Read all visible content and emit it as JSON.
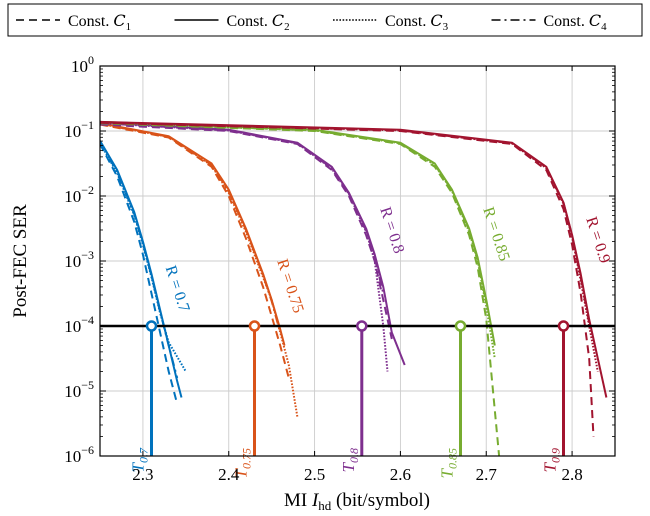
{
  "chart_data": {
    "type": "line",
    "title": "",
    "xlabel": "MI",
    "xlabel_symbol": "I",
    "xlabel_subscript": "hd",
    "xlabel_unit": "(bit/symbol)",
    "ylabel": "Post-FEC SER",
    "xlim": [
      2.25,
      2.85
    ],
    "ylim": [
      1e-06,
      1
    ],
    "yscale": "log",
    "grid": true,
    "legend_position": "top",
    "xticks": [
      2.3,
      2.4,
      2.5,
      2.6,
      2.7,
      2.8
    ],
    "xtick_labels": [
      "2.3",
      "2.4",
      "2.5",
      "2.6",
      "2.7",
      "2.8"
    ],
    "yticks": [
      0,
      -1,
      -2,
      -3,
      -4,
      -5,
      -6
    ],
    "ytick_labels": [
      "10",
      "10",
      "10",
      "10",
      "10",
      "10",
      "10"
    ],
    "ytick_exponents": [
      "0",
      "−1",
      "−2",
      "−3",
      "−4",
      "−5",
      "−6"
    ],
    "legend": [
      {
        "label": "Const. ",
        "symbol": "C",
        "sub": "1",
        "dash": "8,5"
      },
      {
        "label": "Const. ",
        "symbol": "C",
        "sub": "2",
        "dash": ""
      },
      {
        "label": "Const. ",
        "symbol": "C",
        "sub": "3",
        "dash": "1.6,1.6"
      },
      {
        "label": "Const. ",
        "symbol": "C",
        "sub": "4",
        "dash": "9,4,2,4"
      }
    ],
    "threshold_line": {
      "y": 0.0001
    },
    "groups": [
      {
        "rate_label": "R = 0.7",
        "t_symbol": "T",
        "t_sub": "0.7",
        "t_value": 2.31,
        "color": "#0072BD",
        "series": [
          {
            "constellation": "C1",
            "x": [
              2.25,
              2.27,
              2.29,
              2.3,
              2.31,
              2.32,
              2.33,
              2.34
            ],
            "y": [
              -1.2,
              -1.7,
              -2.4,
              -2.9,
              -3.5,
              -4.1,
              -4.7,
              -5.2
            ]
          },
          {
            "constellation": "C2",
            "x": [
              2.25,
              2.27,
              2.29,
              2.3,
              2.31,
              2.32,
              2.33,
              2.34,
              2.345
            ],
            "y": [
              -1.15,
              -1.6,
              -2.25,
              -2.7,
              -3.2,
              -3.75,
              -4.3,
              -4.85,
              -5.1
            ]
          },
          {
            "constellation": "C3",
            "x": [
              2.25,
              2.27,
              2.29,
              2.3,
              2.31,
              2.32,
              2.33,
              2.35
            ],
            "y": [
              -1.18,
              -1.65,
              -2.3,
              -2.75,
              -3.25,
              -3.8,
              -4.25,
              -4.7
            ]
          },
          {
            "constellation": "C4",
            "x": [
              2.25,
              2.27,
              2.29,
              2.3,
              2.31,
              2.32,
              2.33,
              2.34
            ],
            "y": [
              -1.17,
              -1.63,
              -2.28,
              -2.73,
              -3.23,
              -3.78,
              -4.3,
              -4.8
            ]
          }
        ]
      },
      {
        "rate_label": "R = 0.75",
        "t_symbol": "T",
        "t_sub": "0.75",
        "t_value": 2.43,
        "color": "#D95319",
        "series": [
          {
            "constellation": "C1",
            "x": [
              2.25,
              2.33,
              2.38,
              2.4,
              2.42,
              2.44,
              2.45,
              2.46,
              2.47
            ],
            "y": [
              -0.9,
              -1.1,
              -1.55,
              -2.0,
              -2.65,
              -3.4,
              -3.85,
              -4.3,
              -4.8
            ]
          },
          {
            "constellation": "C2",
            "x": [
              2.25,
              2.33,
              2.38,
              2.4,
              2.42,
              2.44,
              2.45,
              2.46,
              2.465
            ],
            "y": [
              -0.88,
              -1.08,
              -1.5,
              -1.9,
              -2.5,
              -3.2,
              -3.6,
              -4.05,
              -4.3
            ]
          },
          {
            "constellation": "C3",
            "x": [
              2.25,
              2.33,
              2.38,
              2.4,
              2.42,
              2.44,
              2.45,
              2.47,
              2.48
            ],
            "y": [
              -0.89,
              -1.09,
              -1.53,
              -1.95,
              -2.55,
              -3.25,
              -3.6,
              -4.6,
              -5.4
            ]
          },
          {
            "constellation": "C4",
            "x": [
              2.25,
              2.33,
              2.38,
              2.4,
              2.42,
              2.44,
              2.45,
              2.46
            ],
            "y": [
              -0.89,
              -1.09,
              -1.52,
              -1.93,
              -2.52,
              -3.22,
              -3.62,
              -4.1
            ]
          }
        ]
      },
      {
        "rate_label": "R = 0.8",
        "t_symbol": "T",
        "t_sub": "0.8",
        "t_value": 2.555,
        "color": "#7E2F8E",
        "series": [
          {
            "constellation": "C1",
            "x": [
              2.25,
              2.4,
              2.48,
              2.52,
              2.54,
              2.56,
              2.57,
              2.58,
              2.59
            ],
            "y": [
              -0.9,
              -1.0,
              -1.2,
              -1.6,
              -2.0,
              -2.6,
              -3.0,
              -3.6,
              -4.2
            ]
          },
          {
            "constellation": "C2",
            "x": [
              2.25,
              2.4,
              2.48,
              2.52,
              2.54,
              2.56,
              2.57,
              2.58,
              2.59,
              2.605
            ],
            "y": [
              -0.87,
              -0.98,
              -1.18,
              -1.55,
              -1.95,
              -2.5,
              -2.9,
              -3.4,
              -4.1,
              -4.6
            ]
          },
          {
            "constellation": "C3",
            "x": [
              2.25,
              2.4,
              2.48,
              2.52,
              2.54,
              2.56,
              2.57,
              2.58,
              2.585
            ],
            "y": [
              -0.88,
              -0.99,
              -1.19,
              -1.58,
              -1.97,
              -2.55,
              -3.0,
              -4.0,
              -4.7
            ]
          },
          {
            "constellation": "C4",
            "x": [
              2.25,
              2.4,
              2.48,
              2.52,
              2.54,
              2.56,
              2.57,
              2.58
            ],
            "y": [
              -0.88,
              -0.99,
              -1.19,
              -1.57,
              -1.96,
              -2.53,
              -2.95,
              -3.5
            ]
          }
        ]
      },
      {
        "rate_label": "R = 0.85",
        "t_symbol": "T",
        "t_sub": "0.85",
        "t_value": 2.67,
        "color": "#77AC30",
        "series": [
          {
            "constellation": "C1",
            "x": [
              2.25,
              2.5,
              2.6,
              2.64,
              2.66,
              2.68,
              2.69,
              2.7,
              2.715
            ],
            "y": [
              -0.88,
              -1.0,
              -1.2,
              -1.55,
              -1.95,
              -2.6,
              -3.1,
              -3.9,
              -6.0
            ]
          },
          {
            "constellation": "C2",
            "x": [
              2.25,
              2.5,
              2.6,
              2.64,
              2.66,
              2.68,
              2.69,
              2.7,
              2.71
            ],
            "y": [
              -0.86,
              -0.98,
              -1.18,
              -1.5,
              -1.9,
              -2.5,
              -2.95,
              -3.6,
              -4.3
            ]
          },
          {
            "constellation": "C3",
            "x": [
              2.25,
              2.5,
              2.6,
              2.64,
              2.66,
              2.68,
              2.69,
              2.7,
              2.71
            ],
            "y": [
              -0.87,
              -0.99,
              -1.19,
              -1.52,
              -1.92,
              -2.55,
              -3.0,
              -3.7,
              -4.5
            ]
          },
          {
            "constellation": "C4",
            "x": [
              2.25,
              2.5,
              2.6,
              2.64,
              2.66,
              2.68,
              2.69,
              2.7
            ],
            "y": [
              -0.87,
              -0.99,
              -1.19,
              -1.52,
              -1.91,
              -2.52,
              -2.98,
              -3.65
            ]
          }
        ]
      },
      {
        "rate_label": "R = 0.9",
        "t_symbol": "T",
        "t_sub": "0.9",
        "t_value": 2.79,
        "color": "#A2142F",
        "series": [
          {
            "constellation": "C1",
            "x": [
              2.25,
              2.6,
              2.73,
              2.77,
              2.79,
              2.8,
              2.81,
              2.82,
              2.825
            ],
            "y": [
              -0.87,
              -1.0,
              -1.2,
              -1.6,
              -2.2,
              -2.75,
              -3.5,
              -4.5,
              -5.7
            ]
          },
          {
            "constellation": "C2",
            "x": [
              2.25,
              2.6,
              2.73,
              2.77,
              2.79,
              2.8,
              2.81,
              2.82,
              2.83,
              2.84
            ],
            "y": [
              -0.86,
              -0.98,
              -1.18,
              -1.55,
              -2.1,
              -2.6,
              -3.2,
              -3.9,
              -4.5,
              -5.1
            ]
          },
          {
            "constellation": "C3",
            "x": [
              2.25,
              2.6,
              2.73,
              2.77,
              2.79,
              2.8,
              2.81,
              2.82,
              2.83
            ],
            "y": [
              -0.87,
              -0.99,
              -1.19,
              -1.57,
              -2.12,
              -2.63,
              -3.3,
              -4.0,
              -4.7
            ]
          },
          {
            "constellation": "C4",
            "x": [
              2.25,
              2.6,
              2.73,
              2.77,
              2.79,
              2.8,
              2.81,
              2.82
            ],
            "y": [
              -0.87,
              -0.99,
              -1.19,
              -1.56,
              -2.11,
              -2.62,
              -3.25,
              -3.95
            ]
          }
        ]
      }
    ]
  }
}
